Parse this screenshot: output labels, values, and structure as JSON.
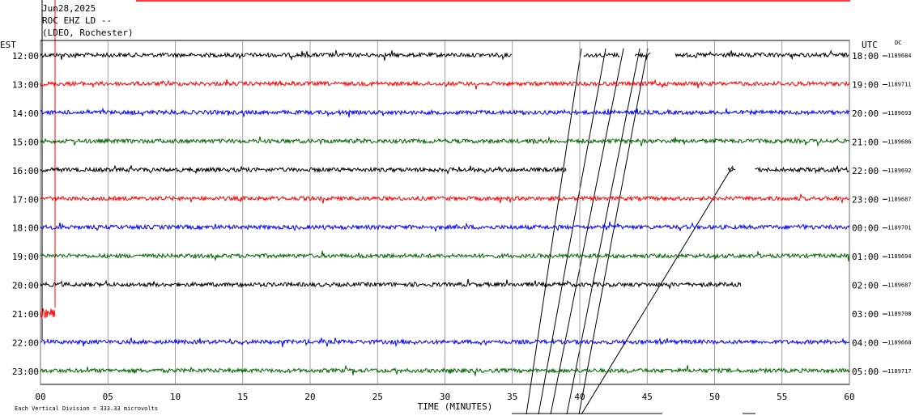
{
  "header": {
    "date": "Jun28,2025",
    "station": "ROC EHZ LD --",
    "network": "(LDEO, Rochester)"
  },
  "left_zone": "EST",
  "right_zone": "UTC",
  "dc_label": "DC",
  "rows": [
    {
      "est": "12:00",
      "utc": "18:00",
      "count": "1189684",
      "color": "#000000",
      "segments": [
        [
          0,
          35
        ],
        [
          40.3,
          43
        ],
        [
          44.1,
          45.3
        ],
        [
          47.1,
          60
        ]
      ]
    },
    {
      "est": "13:00",
      "utc": "19:00",
      "count": "1189711",
      "color": "#ff0000",
      "segments": [
        [
          0,
          60
        ]
      ]
    },
    {
      "est": "14:00",
      "utc": "20:00",
      "count": "1189693",
      "color": "#0000ff",
      "segments": [
        [
          0,
          60
        ]
      ]
    },
    {
      "est": "15:00",
      "utc": "21:00",
      "count": "1189686",
      "color": "#006400",
      "segments": [
        [
          0,
          60
        ]
      ]
    },
    {
      "est": "16:00",
      "utc": "22:00",
      "count": "1189692",
      "color": "#000000",
      "segments": [
        [
          0,
          39
        ],
        [
          51,
          51.6
        ],
        [
          53,
          60
        ]
      ]
    },
    {
      "est": "17:00",
      "utc": "23:00",
      "count": "1189687",
      "color": "#ff0000",
      "segments": [
        [
          0,
          60
        ]
      ]
    },
    {
      "est": "18:00",
      "utc": "00:00",
      "count": "1189701",
      "color": "#0000ff",
      "segments": [
        [
          0,
          60
        ]
      ]
    },
    {
      "est": "19:00",
      "utc": "01:00",
      "count": "1189694",
      "color": "#006400",
      "segments": [
        [
          0,
          60
        ]
      ]
    },
    {
      "est": "20:00",
      "utc": "02:00",
      "count": "1189687",
      "color": "#000000",
      "segments": [
        [
          0,
          52
        ]
      ]
    },
    {
      "est": "21:00",
      "utc": "03:00",
      "count": "1189708",
      "color": "#ff0000",
      "segments": [
        [
          0,
          1.1
        ]
      ]
    },
    {
      "est": "22:00",
      "utc": "04:00",
      "count": "1189668",
      "color": "#0000ff",
      "segments": [
        [
          0,
          60
        ]
      ]
    },
    {
      "est": "23:00",
      "utc": "05:00",
      "count": "1189717",
      "color": "#006400",
      "segments": [
        [
          0,
          60
        ]
      ]
    }
  ],
  "x_axis": {
    "title": "TIME (MINUTES)",
    "xlim": [
      0,
      60
    ],
    "ticks": [
      {
        "value": 0,
        "label": "00"
      },
      {
        "value": 5,
        "label": "05"
      },
      10,
      15,
      20,
      25,
      30,
      35,
      40,
      45,
      50,
      55,
      60
    ]
  },
  "footer": "Each Vertical Division =  333.33 microvolts"
}
